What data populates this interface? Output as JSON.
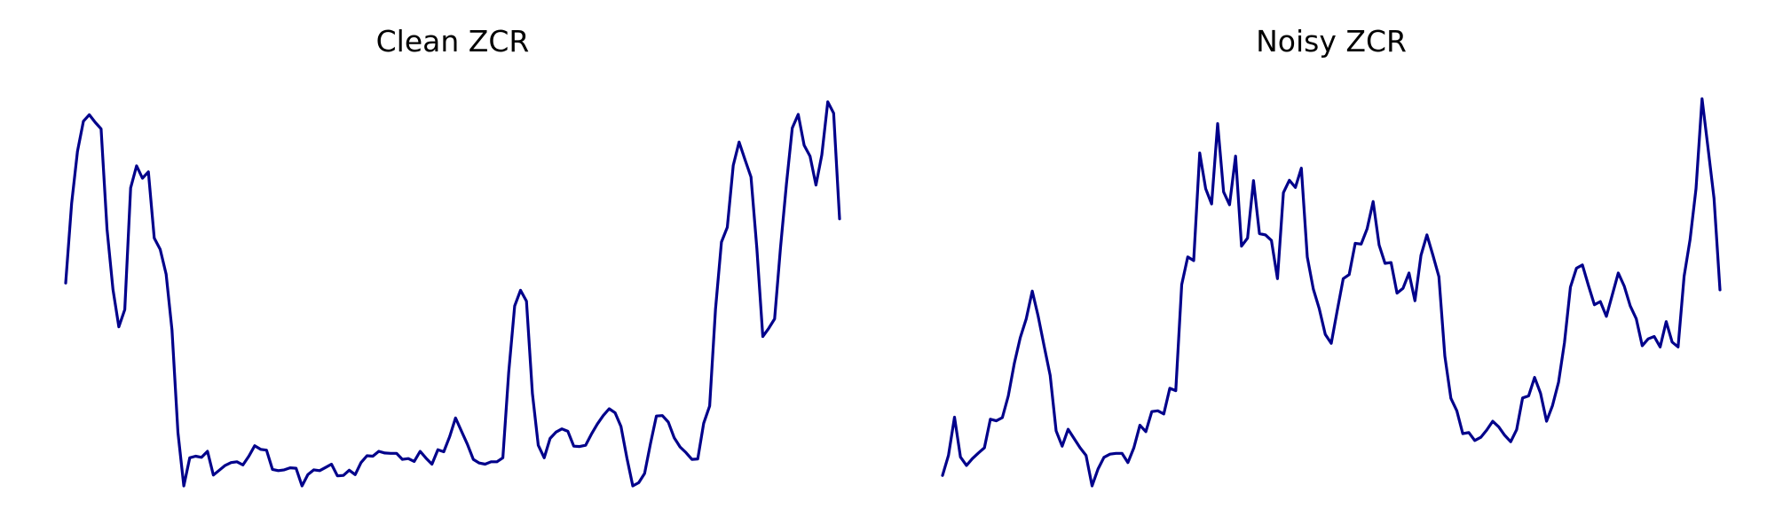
{
  "chart_data": [
    {
      "type": "line",
      "title": "Clean ZCR",
      "xlabel": "",
      "ylabel": "",
      "axes_visible": false,
      "grid": false,
      "color": "#00008b",
      "ylim": [
        0,
        100
      ],
      "values": [
        50.5,
        70.3,
        83.3,
        90.8,
        92.4,
        90.5,
        88.9,
        63.9,
        48.9,
        39.6,
        43.9,
        74.2,
        79.7,
        76.6,
        78.2,
        61.7,
        58.9,
        52.7,
        38.8,
        13.3,
        0.0,
        7.0,
        7.4,
        7.1,
        8.6,
        2.7,
        3.9,
        5.1,
        5.8,
        6.0,
        5.2,
        7.4,
        10.0,
        9.1,
        8.9,
        4.1,
        3.8,
        4.0,
        4.5,
        4.4,
        0.0,
        2.8,
        4.0,
        3.8,
        4.6,
        5.4,
        2.5,
        2.6,
        3.9,
        2.8,
        5.8,
        7.5,
        7.4,
        8.6,
        8.2,
        8.1,
        8.1,
        6.6,
        6.8,
        6.1,
        8.6,
        6.9,
        5.4,
        9.0,
        8.5,
        12.3,
        16.9,
        13.6,
        10.4,
        6.6,
        5.7,
        5.4,
        6.0,
        6.0,
        7.0,
        28.3,
        44.8,
        48.7,
        46.0,
        23.0,
        10.1,
        7.0,
        11.8,
        13.4,
        14.2,
        13.6,
        9.9,
        9.8,
        10.1,
        12.9,
        15.4,
        17.5,
        19.2,
        18.2,
        14.8,
        6.9,
        0.0,
        0.8,
        3.1,
        10.6,
        17.4,
        17.5,
        15.9,
        12.0,
        9.7,
        8.3,
        6.6,
        6.7,
        15.6,
        19.9,
        44.0,
        60.7,
        64.4,
        79.8,
        85.6,
        81.2,
        76.9,
        59.1,
        37.2,
        39.2,
        41.6,
        59.2,
        75.1,
        89.1,
        92.5,
        84.8,
        82.1,
        74.9,
        82.4,
        95.6,
        92.8,
        66.5
      ]
    },
    {
      "type": "line",
      "title": "Noisy ZCR",
      "xlabel": "",
      "ylabel": "",
      "axes_visible": false,
      "grid": false,
      "color": "#00008b",
      "ylim": [
        0,
        100
      ],
      "values": [
        2.6,
        7.6,
        17.1,
        7.2,
        5.1,
        6.8,
        8.2,
        9.5,
        16.6,
        16.2,
        17.0,
        22.4,
        30.5,
        36.9,
        41.6,
        48.5,
        42.2,
        34.7,
        27.5,
        13.7,
        9.9,
        14.1,
        11.8,
        9.5,
        7.6,
        0.0,
        4.2,
        7.1,
        7.9,
        8.1,
        8.1,
        5.8,
        9.5,
        15.1,
        13.5,
        18.5,
        18.7,
        17.9,
        24.3,
        23.7,
        50.1,
        57.0,
        56.1,
        82.9,
        74.0,
        70.2,
        90.2,
        73.2,
        70.0,
        82.1,
        59.7,
        61.7,
        76.0,
        62.8,
        62.5,
        61.1,
        51.6,
        73.0,
        76.1,
        74.3,
        79.1,
        57.0,
        49.0,
        44.1,
        37.7,
        35.5,
        43.6,
        51.6,
        52.6,
        60.4,
        60.2,
        64.0,
        70.8,
        60.0,
        55.4,
        55.6,
        48.0,
        49.2,
        53.0,
        46.1,
        57.4,
        62.5,
        57.4,
        52.1,
        32.3,
        21.8,
        18.7,
        13.0,
        13.3,
        11.3,
        12.1,
        13.9,
        16.1,
        14.7,
        12.6,
        11.0,
        14.0,
        21.9,
        22.4,
        27.0,
        23.1,
        16.1,
        20.0,
        25.8,
        35.7,
        49.5,
        54.2,
        55.0,
        49.9,
        45.1,
        45.9,
        42.2,
        47.6,
        53.0,
        49.7,
        44.8,
        41.6,
        34.9,
        36.6,
        37.2,
        34.6,
        40.9,
        35.8,
        34.6,
        52.2,
        61.3,
        74.0,
        96.4,
        84.2,
        71.6,
        48.8
      ]
    }
  ]
}
